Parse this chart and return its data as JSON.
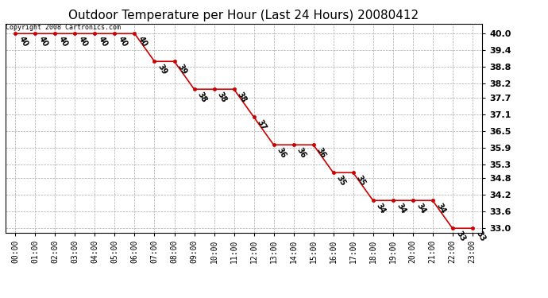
{
  "title": "Outdoor Temperature per Hour (Last 24 Hours) 20080412",
  "hours": [
    "00:00",
    "01:00",
    "02:00",
    "03:00",
    "04:00",
    "05:00",
    "06:00",
    "07:00",
    "08:00",
    "09:00",
    "10:00",
    "11:00",
    "12:00",
    "13:00",
    "14:00",
    "15:00",
    "16:00",
    "17:00",
    "18:00",
    "19:00",
    "20:00",
    "21:00",
    "22:00",
    "23:00"
  ],
  "temps": [
    40,
    40,
    40,
    40,
    40,
    40,
    40,
    39,
    39,
    38,
    38,
    38,
    37,
    36,
    36,
    36,
    35,
    35,
    34,
    34,
    34,
    34,
    33,
    33
  ],
  "line_color": "#cc0000",
  "marker": "o",
  "marker_size": 3,
  "marker_color": "#cc0000",
  "grid_color": "#aaaaaa",
  "background_color": "#ffffff",
  "ylim_min": 32.85,
  "ylim_max": 40.35,
  "yticks": [
    33.0,
    33.6,
    34.2,
    34.8,
    35.3,
    35.9,
    36.5,
    37.1,
    37.7,
    38.2,
    38.8,
    39.4,
    40.0
  ],
  "copyright_text": "Copyright 2008 Cartronics.com",
  "label_fontsize": 7,
  "title_fontsize": 11
}
